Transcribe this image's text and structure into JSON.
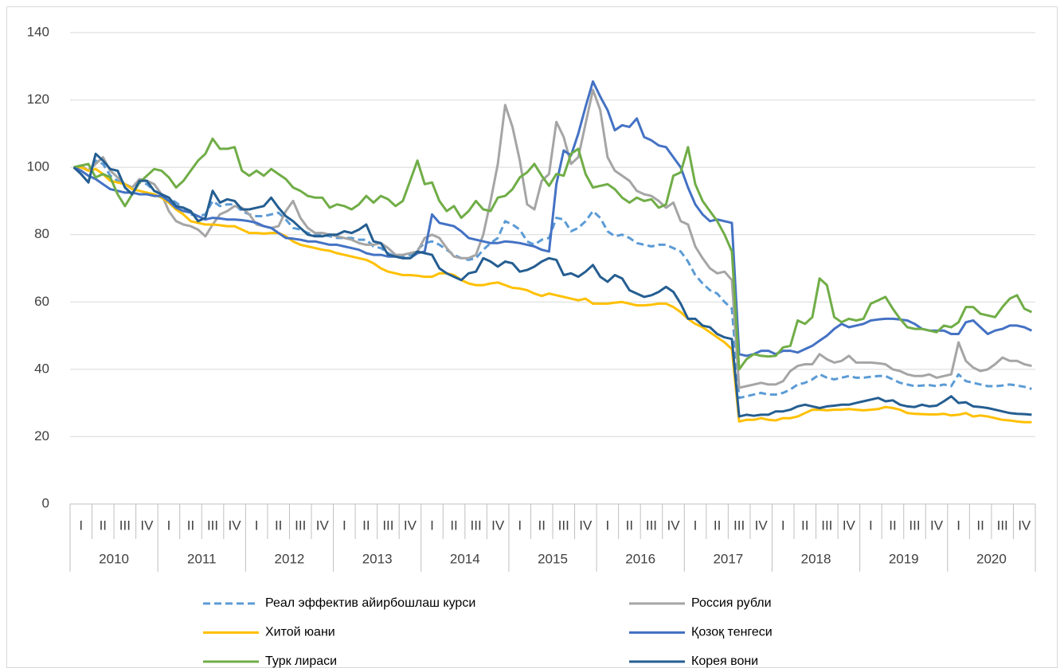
{
  "chart_data": {
    "type": "line",
    "years": [
      "2010",
      "2011",
      "2012",
      "2013",
      "2014",
      "2015",
      "2016",
      "2017",
      "2018",
      "2019",
      "2020"
    ],
    "quarters": [
      "I",
      "II",
      "III",
      "IV"
    ],
    "ylim": [
      0,
      140
    ],
    "yticks": [
      0,
      20,
      40,
      60,
      80,
      100,
      120,
      140
    ],
    "grid": true,
    "series": [
      {
        "name": "Реал эффектив айирбошлаш курси",
        "color": "#5b9bd5",
        "dash": true,
        "values": [
          100,
          100,
          99,
          102,
          101,
          97.5,
          96,
          95,
          94,
          95.5,
          95,
          93,
          92,
          91,
          89.5,
          88,
          86,
          85.5,
          86,
          90,
          88.5,
          89,
          89,
          87,
          86,
          85.5,
          85.5,
          86,
          86.5,
          84.5,
          82,
          81.5,
          80.5,
          80,
          80,
          79.5,
          79,
          79,
          79,
          78.5,
          78.5,
          76.5,
          76,
          74.5,
          73.5,
          73.5,
          74,
          75.5,
          77.5,
          78,
          77,
          75.5,
          74,
          73,
          72.5,
          73,
          75.5,
          77.5,
          79,
          84,
          83,
          81.5,
          78,
          77,
          78.5,
          79,
          85,
          84.5,
          81,
          82,
          84,
          87,
          85,
          81,
          79.5,
          80,
          79,
          77.5,
          77,
          76.5,
          77,
          77,
          76,
          75,
          72,
          68,
          65.5,
          63.5,
          62.5,
          60,
          58,
          31.5,
          32,
          32.5,
          33,
          32.5,
          32.5,
          33,
          34,
          35.5,
          36,
          37,
          38.5,
          37.5,
          37,
          37.5,
          38,
          37.5,
          37.5,
          37.8,
          38,
          38,
          37,
          36,
          35.5,
          35,
          35.2,
          35.3,
          35,
          35.5,
          35,
          38.5,
          36.5,
          36,
          35.5,
          35,
          35,
          35.2,
          35.5,
          35.2,
          34.8,
          34.2
        ]
      },
      {
        "name": "Россия рубли",
        "color": "#a5a5a5",
        "values": [
          100,
          100.5,
          99,
          101,
          103,
          99,
          97,
          95,
          94,
          96.5,
          96,
          95,
          92,
          87,
          84,
          83,
          82.5,
          81.5,
          79.5,
          83,
          86,
          87,
          88.5,
          88,
          86,
          83,
          82.5,
          82,
          82.5,
          87,
          90,
          85,
          82,
          80.5,
          80.5,
          80,
          79.5,
          79,
          78.5,
          77.5,
          77,
          77,
          77.5,
          76,
          74,
          74,
          74.5,
          75,
          79,
          80,
          79,
          76,
          73.5,
          73,
          73,
          74,
          80,
          90,
          101,
          118.5,
          112,
          102,
          89,
          87.5,
          96,
          98,
          113.5,
          109,
          101,
          103,
          113,
          123,
          117,
          103,
          99,
          97.5,
          96,
          93,
          92,
          91.5,
          90,
          88,
          89.5,
          84,
          83,
          76.5,
          73,
          70,
          68.5,
          69,
          66.5,
          34.5,
          35,
          35.5,
          36,
          35.5,
          35.5,
          36.5,
          39.5,
          41,
          41.5,
          41.5,
          44.5,
          43,
          42,
          42.5,
          44,
          42,
          42,
          42,
          41.8,
          41.5,
          40,
          39.5,
          38.5,
          38,
          38,
          38.5,
          37.5,
          38,
          38.5,
          48,
          42.5,
          40.5,
          39.5,
          40,
          41.5,
          43.5,
          42.5,
          42.5,
          41.5,
          41
        ]
      },
      {
        "name": "Хитой юани",
        "color": "#ffc000",
        "values": [
          100,
          100,
          99,
          99.5,
          98,
          96,
          95.5,
          95,
          93.5,
          93,
          92.5,
          92,
          91,
          89.5,
          87.5,
          86,
          84,
          83.5,
          83,
          83,
          82.8,
          82.5,
          82.5,
          81.5,
          80.5,
          80.5,
          80.3,
          80.5,
          80.5,
          79.5,
          78,
          77,
          76.5,
          76,
          75.5,
          75.2,
          74.5,
          74,
          73.5,
          73,
          72.5,
          71.5,
          70,
          69,
          68.5,
          68,
          68,
          67.8,
          67.5,
          67.5,
          68.5,
          68.5,
          68,
          66.5,
          65.5,
          65,
          65,
          65.5,
          65.8,
          65,
          64.2,
          64,
          63.5,
          62.5,
          61.8,
          62.5,
          62,
          61.5,
          61,
          60.5,
          61,
          59.5,
          59.5,
          59.5,
          59.8,
          60,
          59.5,
          59,
          59,
          59.2,
          59.5,
          59.5,
          58.5,
          57,
          55,
          53.5,
          52.5,
          51,
          49.5,
          48,
          46,
          24.5,
          25,
          25,
          25.5,
          25,
          24.8,
          25.5,
          25.5,
          26,
          27,
          28,
          28,
          27.8,
          28,
          28,
          28.2,
          28,
          27.8,
          28,
          28.2,
          28.8,
          28.5,
          28,
          27,
          26.8,
          26.7,
          26.6,
          26.6,
          26.8,
          26.3,
          26.5,
          27,
          26,
          26.3,
          26,
          25.5,
          25,
          24.8,
          24.5,
          24.3,
          24.3
        ]
      },
      {
        "name": "Қозоқ тенгеси",
        "color": "#4472c4",
        "values": [
          100,
          99,
          97.5,
          96.5,
          95,
          93.5,
          93,
          92.5,
          92.5,
          92,
          92,
          91.5,
          91.5,
          90,
          88,
          87,
          86.5,
          85.5,
          84.5,
          85,
          84.8,
          84.5,
          84.5,
          84.3,
          84,
          83.5,
          82.5,
          82,
          80.5,
          79,
          78.8,
          78.5,
          78,
          78,
          77.5,
          77,
          77,
          76.5,
          76,
          75.5,
          74.5,
          74,
          74,
          73.5,
          73.5,
          73,
          73,
          74.5,
          75,
          86,
          83.5,
          83,
          82.5,
          81,
          79,
          78.5,
          78,
          77.5,
          77.5,
          78,
          77.8,
          77.5,
          77,
          76.5,
          75.5,
          75,
          95,
          105,
          103.5,
          110,
          118,
          125.5,
          121,
          117,
          111,
          112.5,
          112,
          114.5,
          109,
          108,
          106.5,
          106,
          103,
          100,
          94,
          89,
          86,
          84,
          84.5,
          84,
          83.5,
          44.5,
          44,
          44.5,
          45.5,
          45.5,
          44.5,
          45.5,
          45.5,
          45,
          46,
          47,
          48.5,
          50,
          52,
          53.5,
          52.5,
          53,
          53.5,
          54.5,
          54.8,
          55,
          55,
          54.8,
          54.5,
          53.5,
          52,
          51.5,
          51.5,
          51.5,
          50.5,
          50.5,
          54,
          54.5,
          52.5,
          50.5,
          51.5,
          52,
          53,
          53,
          52.5,
          51.5
        ]
      },
      {
        "name": "Турк лираси",
        "color": "#70ad47",
        "values": [
          100,
          100.5,
          101,
          97,
          98,
          97,
          92,
          88.5,
          92,
          95.5,
          97.5,
          99.5,
          99,
          97,
          94,
          96,
          99,
          102,
          104,
          108.5,
          105.5,
          105.5,
          106,
          99,
          97.5,
          99,
          97.5,
          99.5,
          98,
          96.5,
          94,
          93,
          91.5,
          91,
          91,
          88,
          89,
          88.5,
          87.5,
          89,
          91.5,
          89.5,
          91.5,
          90.5,
          88.5,
          90,
          96,
          102,
          95,
          95.5,
          90,
          87,
          88.5,
          85,
          87,
          90,
          87.5,
          87,
          91,
          91.5,
          93.5,
          97,
          98.5,
          101,
          97.5,
          94.5,
          98,
          97.5,
          104,
          105.5,
          98,
          94,
          94.5,
          95,
          93.5,
          91,
          89.5,
          91,
          90,
          90.5,
          88,
          89,
          97.5,
          98.5,
          106,
          95,
          90,
          87,
          84,
          80,
          75,
          40,
          43,
          44.5,
          44,
          43.8,
          44,
          46.5,
          47,
          54.5,
          53.5,
          55.5,
          67,
          65,
          55.5,
          54,
          55,
          54.5,
          55,
          59.5,
          60.5,
          61.5,
          58,
          55,
          52.5,
          52,
          52,
          51.5,
          51,
          53,
          52.5,
          54,
          58.5,
          58.5,
          56.5,
          56,
          55.5,
          58.5,
          61,
          62,
          58,
          57
        ]
      },
      {
        "name": "Корея вони",
        "color": "#255e91",
        "values": [
          100,
          98,
          95.5,
          104,
          102,
          99.5,
          99,
          94,
          92,
          96,
          96,
          93,
          92,
          91,
          88.5,
          88,
          87,
          84,
          85,
          93,
          89.5,
          90.5,
          90,
          87.5,
          87.5,
          88,
          88.5,
          91,
          88,
          85.5,
          84,
          82,
          80,
          79.5,
          79.5,
          80,
          80,
          81,
          80.5,
          81.5,
          83,
          78,
          77.5,
          74,
          73.5,
          73,
          73,
          75,
          74.5,
          74,
          70,
          68.5,
          67.5,
          66.5,
          68.5,
          69,
          73,
          72,
          70.5,
          72,
          71.5,
          69,
          69.5,
          70.5,
          72,
          73,
          72.5,
          68,
          68.5,
          67.5,
          69,
          71,
          67.5,
          66,
          68,
          67,
          63.5,
          62.5,
          61.5,
          62,
          63,
          64.5,
          63,
          59.5,
          55,
          55,
          53,
          52.5,
          50.5,
          49.5,
          49,
          26,
          26.5,
          26.2,
          26.5,
          26.5,
          27.5,
          27.5,
          28,
          29,
          29.5,
          29,
          28.5,
          29,
          29.2,
          29.5,
          29.5,
          30,
          30.5,
          31,
          31.5,
          30.5,
          30.8,
          29.5,
          29,
          28.8,
          29.5,
          29,
          29.2,
          30.5,
          32,
          30,
          30.2,
          29,
          28.8,
          28.5,
          28,
          27.5,
          27,
          26.8,
          26.7,
          26.5
        ]
      }
    ]
  }
}
